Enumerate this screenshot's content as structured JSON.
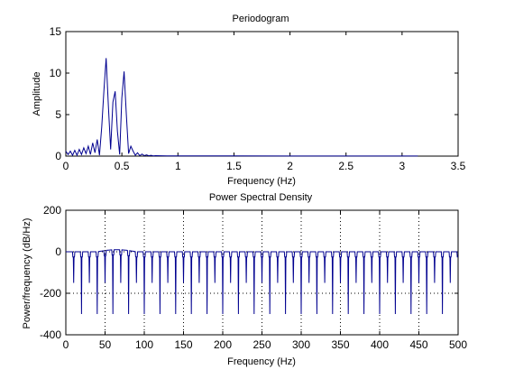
{
  "chart_data": [
    {
      "type": "line",
      "title": "Periodogram",
      "xlabel": "Frequency (Hz)",
      "ylabel": "Amplitude",
      "xlim": [
        0,
        3.5
      ],
      "ylim": [
        0,
        15
      ],
      "xticks": [
        "0",
        "0.5",
        "1",
        "1.5",
        "2",
        "2.5",
        "3",
        "3.5"
      ],
      "yticks": [
        "0",
        "5",
        "10",
        "15"
      ],
      "grid": false,
      "series_color": "#00008f",
      "x": [
        0.0,
        0.02,
        0.04,
        0.06,
        0.08,
        0.1,
        0.12,
        0.14,
        0.16,
        0.18,
        0.2,
        0.22,
        0.24,
        0.26,
        0.28,
        0.3,
        0.32,
        0.34,
        0.36,
        0.38,
        0.4,
        0.42,
        0.44,
        0.46,
        0.48,
        0.5,
        0.52,
        0.54,
        0.56,
        0.58,
        0.6,
        0.62,
        0.64,
        0.66,
        0.68,
        0.7,
        0.72,
        0.74,
        0.76,
        0.78,
        0.8,
        0.9,
        1.0,
        1.5,
        2.0,
        2.5,
        3.0,
        3.14
      ],
      "y": [
        0.6,
        0.2,
        0.6,
        0.1,
        0.7,
        0.1,
        0.8,
        0.2,
        1.0,
        0.3,
        1.2,
        0.2,
        1.6,
        0.4,
        2.0,
        0.1,
        3.5,
        8.0,
        11.8,
        6.0,
        0.8,
        6.5,
        7.8,
        3.0,
        0.2,
        7.0,
        10.2,
        5.0,
        0.3,
        1.2,
        0.6,
        0.1,
        0.4,
        0.05,
        0.25,
        0.05,
        0.15,
        0.04,
        0.1,
        0.03,
        0.05,
        0.03,
        0.02,
        0.02,
        0.01,
        0.01,
        0.01,
        0.01
      ]
    },
    {
      "type": "line",
      "title": "Power Spectral Density",
      "xlabel": "Frequency (Hz)",
      "ylabel": "Power/frequency (dB/Hz)",
      "xlim": [
        0,
        500
      ],
      "ylim": [
        -400,
        200
      ],
      "xticks": [
        "0",
        "50",
        "100",
        "150",
        "200",
        "250",
        "300",
        "350",
        "400",
        "450",
        "500"
      ],
      "yticks": [
        "-400",
        "-200",
        "0",
        "200"
      ],
      "grid": true,
      "series_color": "#00008f",
      "baseline_db": 0,
      "hump_range_hz": [
        40,
        90
      ],
      "hump_peak_db": 10,
      "notch_spacing_hz": 10,
      "notch_depths_db": [
        -300,
        -150
      ]
    }
  ]
}
